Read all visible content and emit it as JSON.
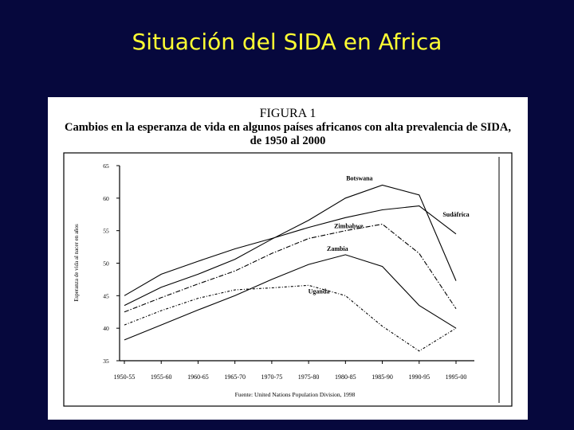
{
  "slide": {
    "title": "Situación del SIDA en Africa"
  },
  "figure": {
    "number": "FIGURA 1",
    "caption": "Cambios en la esperanza de vida en algunos países africanos con alta prevalencia de SIDA, de 1950 al 2000",
    "source": "Fuente: United Nations Population Division, 1998"
  },
  "chart_data": {
    "type": "line",
    "ylabel": "Esperanza de vida al nacer en años",
    "xlabel": "",
    "ylim": [
      35,
      65
    ],
    "yticks": [
      35,
      40,
      45,
      50,
      55,
      60,
      65
    ],
    "categories": [
      "1950-55",
      "1955-60",
      "1960-65",
      "1965-70",
      "1970-75",
      "1975-80",
      "1980-85",
      "1985-90",
      "1990-95",
      "1995-00"
    ],
    "series": [
      {
        "name": "Botswana",
        "values": [
          43.5,
          46.3,
          48.3,
          50.6,
          53.7,
          56.6,
          60.0,
          62.0,
          60.5,
          47.3
        ],
        "dash": "solid"
      },
      {
        "name": "Sudáfrica",
        "values": [
          45.0,
          48.3,
          50.3,
          52.2,
          53.8,
          55.5,
          57.0,
          58.2,
          58.8,
          54.5
        ],
        "dash": "solid"
      },
      {
        "name": "Zimbabwe",
        "values": [
          42.5,
          44.7,
          46.8,
          48.8,
          51.5,
          53.8,
          55.0,
          56.0,
          51.5,
          43.0
        ],
        "dash": "dashdot"
      },
      {
        "name": "Zambia",
        "values": [
          38.2,
          40.5,
          42.8,
          45.0,
          47.5,
          49.8,
          51.3,
          49.5,
          43.5,
          40.0
        ],
        "dash": "solid"
      },
      {
        "name": "Uganda",
        "values": [
          40.5,
          42.7,
          44.6,
          45.9,
          46.2,
          46.6,
          45.0,
          40.3,
          36.5,
          40.0
        ],
        "dash": "dotdash"
      }
    ]
  }
}
